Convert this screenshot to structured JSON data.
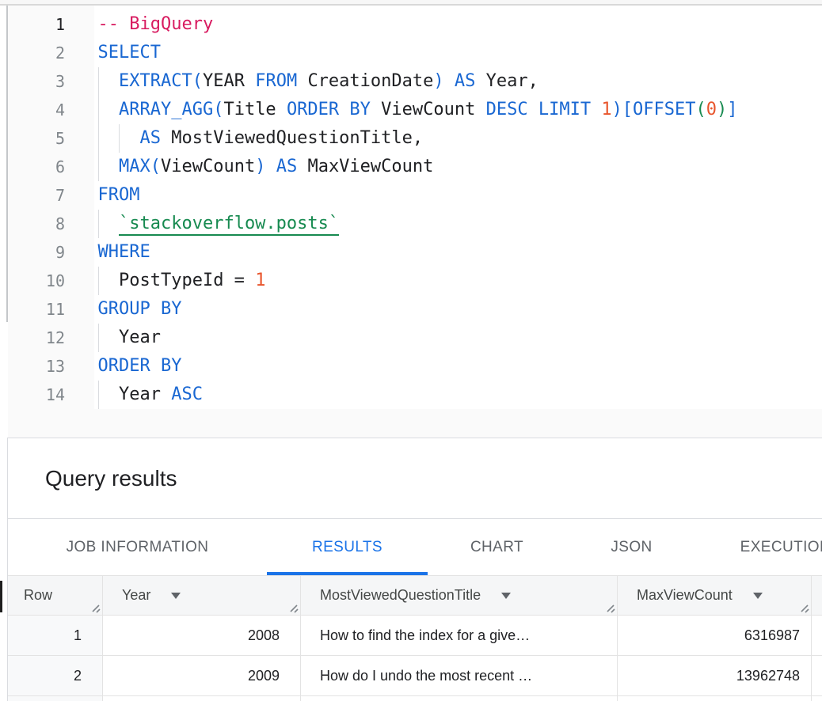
{
  "colors": {
    "keyword": "#1967d2",
    "comment": "#d81b60",
    "number": "#e8552c",
    "green": "#178a50",
    "accent": "#1a73e8"
  },
  "editor": {
    "lines": [
      {
        "n": "1",
        "active": true,
        "guides": [],
        "tokens": [
          [
            "c",
            "-- BigQuery"
          ]
        ]
      },
      {
        "n": "2",
        "active": false,
        "guides": [],
        "tokens": [
          [
            "k",
            "SELECT"
          ]
        ]
      },
      {
        "n": "3",
        "active": false,
        "guides": [
          0
        ],
        "tokens": [
          [
            "i",
            "  "
          ],
          [
            "k",
            "EXTRACT("
          ],
          [
            "i",
            "YEAR "
          ],
          [
            "k",
            "FROM "
          ],
          [
            "i",
            "CreationDate"
          ],
          [
            "k",
            ")"
          ],
          [
            "i",
            " "
          ],
          [
            "k",
            "AS"
          ],
          [
            "i",
            " Year,"
          ]
        ]
      },
      {
        "n": "4",
        "active": false,
        "guides": [
          0
        ],
        "tokens": [
          [
            "i",
            "  "
          ],
          [
            "k",
            "ARRAY_AGG("
          ],
          [
            "i",
            "Title "
          ],
          [
            "k",
            "ORDER BY "
          ],
          [
            "i",
            "ViewCount "
          ],
          [
            "k",
            "DESC LIMIT "
          ],
          [
            "n",
            "1"
          ],
          [
            "k",
            ")[OFFSET"
          ],
          [
            "g",
            "("
          ],
          [
            "n",
            "0"
          ],
          [
            "g",
            ")"
          ],
          [
            "k",
            "]"
          ]
        ]
      },
      {
        "n": "5",
        "active": false,
        "guides": [
          0,
          2
        ],
        "tokens": [
          [
            "i",
            "    "
          ],
          [
            "k",
            "AS"
          ],
          [
            "i",
            " MostViewedQuestionTitle,"
          ]
        ]
      },
      {
        "n": "6",
        "active": false,
        "guides": [
          0
        ],
        "tokens": [
          [
            "i",
            "  "
          ],
          [
            "k",
            "MAX("
          ],
          [
            "i",
            "ViewCount"
          ],
          [
            "k",
            ")"
          ],
          [
            "i",
            " "
          ],
          [
            "k",
            "AS"
          ],
          [
            "i",
            " MaxViewCount"
          ]
        ]
      },
      {
        "n": "7",
        "active": false,
        "guides": [],
        "tokens": [
          [
            "k",
            "FROM"
          ]
        ]
      },
      {
        "n": "8",
        "active": false,
        "guides": [
          0
        ],
        "tokens": [
          [
            "i",
            "  "
          ],
          [
            "tbl",
            "`stackoverflow.posts`"
          ]
        ]
      },
      {
        "n": "9",
        "active": false,
        "guides": [],
        "tokens": [
          [
            "k",
            "WHERE"
          ]
        ]
      },
      {
        "n": "10",
        "active": false,
        "guides": [
          0
        ],
        "tokens": [
          [
            "i",
            "  PostTypeId = "
          ],
          [
            "n",
            "1"
          ]
        ]
      },
      {
        "n": "11",
        "active": false,
        "guides": [],
        "tokens": [
          [
            "k",
            "GROUP BY"
          ]
        ]
      },
      {
        "n": "12",
        "active": false,
        "guides": [
          0
        ],
        "tokens": [
          [
            "i",
            "  Year"
          ]
        ]
      },
      {
        "n": "13",
        "active": false,
        "guides": [],
        "tokens": [
          [
            "k",
            "ORDER BY"
          ]
        ]
      },
      {
        "n": "14",
        "active": false,
        "guides": [
          0
        ],
        "tokens": [
          [
            "i",
            "  Year "
          ],
          [
            "k",
            "ASC"
          ]
        ]
      }
    ]
  },
  "results": {
    "title": "Query results",
    "tabs": [
      {
        "label": "JOB INFORMATION",
        "active": false
      },
      {
        "label": "RESULTS",
        "active": true
      },
      {
        "label": "CHART",
        "active": false
      },
      {
        "label": "JSON",
        "active": false
      },
      {
        "label": "EXECUTION DETAILS",
        "active": false
      }
    ],
    "table": {
      "columns": [
        {
          "label": "Row",
          "menu": false,
          "align": "right"
        },
        {
          "label": "Year",
          "menu": true,
          "align": "right"
        },
        {
          "label": "MostViewedQuestionTitle",
          "menu": true,
          "align": "left"
        },
        {
          "label": "MaxViewCount",
          "menu": true,
          "align": "right"
        }
      ],
      "rows": [
        [
          "1",
          "2008",
          "How to find the index for a give…",
          "6316987"
        ],
        [
          "2",
          "2009",
          "How do I undo the most recent …",
          "13962748"
        ]
      ]
    }
  }
}
